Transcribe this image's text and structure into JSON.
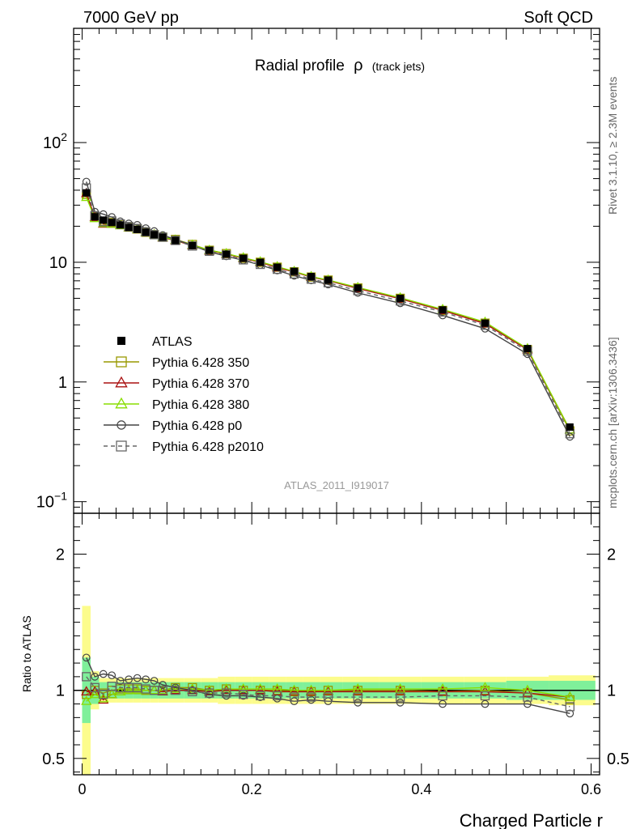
{
  "header": {
    "left": "7000 GeV pp",
    "right": "Soft QCD"
  },
  "side_labels": {
    "top": "Rivet 3.1.10, ≥ 2.3M events",
    "bottom": "mcplots.cern.ch [arXiv:1306.3436]"
  },
  "chart_data": {
    "type": "line",
    "title": "Radial profile",
    "title_symbol": "ρ",
    "title_suffix": "(track jets)",
    "watermark": "ATLAS_2011_I919017",
    "xlabel": "Charged Particle r",
    "ylabel_ratio": "Ratio to ATLAS",
    "xlim": [
      -0.01,
      0.61
    ],
    "ylim": [
      0.08,
      900
    ],
    "yscale": "log",
    "ratio_ylim": [
      0.38,
      2.3
    ],
    "x_ticks": [
      {
        "v": 0,
        "label": "0"
      },
      {
        "v": 0.2,
        "label": "0.2"
      },
      {
        "v": 0.4,
        "label": "0.4"
      },
      {
        "v": 0.6,
        "label": "0.6"
      }
    ],
    "y_ticks": [
      {
        "v": 100,
        "label": "10",
        "exp": "2"
      },
      {
        "v": 10,
        "label": "10",
        "exp": ""
      },
      {
        "v": 1,
        "label": "1",
        "exp": ""
      },
      {
        "v": 0.1,
        "label": "10",
        "exp": "−1"
      }
    ],
    "ratio_ticks": [
      {
        "v": 2,
        "label": "2"
      },
      {
        "v": 1,
        "label": "1"
      },
      {
        "v": 0.5,
        "label": "0.5"
      }
    ],
    "legend_position": "middle-left",
    "x": [
      0.005,
      0.015,
      0.025,
      0.035,
      0.045,
      0.055,
      0.065,
      0.075,
      0.085,
      0.095,
      0.11,
      0.13,
      0.15,
      0.17,
      0.19,
      0.21,
      0.23,
      0.25,
      0.27,
      0.29,
      0.325,
      0.375,
      0.425,
      0.475,
      0.525,
      0.575
    ],
    "data": {
      "name": "ATLAS",
      "values": [
        38,
        24,
        22.5,
        21.5,
        20.5,
        19.5,
        18.8,
        17.8,
        17,
        16.2,
        15.2,
        13.8,
        12.6,
        11.7,
        10.8,
        10,
        9.1,
        8.4,
        7.6,
        7.1,
        6.1,
        5,
        4,
        3.1,
        1.9,
        0.42
      ]
    },
    "band_inner": [
      0.24,
      0.1,
      0.06,
      0.06,
      0.06,
      0.06,
      0.06,
      0.06,
      0.06,
      0.06,
      0.06,
      0.06,
      0.06,
      0.06,
      0.06,
      0.06,
      0.06,
      0.06,
      0.06,
      0.06,
      0.06,
      0.06,
      0.06,
      0.06,
      0.07,
      0.07
    ],
    "band_outer": [
      0.62,
      0.14,
      0.09,
      0.09,
      0.09,
      0.09,
      0.09,
      0.09,
      0.09,
      0.09,
      0.09,
      0.09,
      0.09,
      0.1,
      0.1,
      0.1,
      0.1,
      0.1,
      0.1,
      0.1,
      0.1,
      0.1,
      0.1,
      0.1,
      0.1,
      0.11
    ],
    "series": [
      {
        "name": "Pythia 6.428 350",
        "color": "#999900",
        "marker": "square-open",
        "dash": "",
        "ratio": [
          0.97,
          1.0,
          0.98,
          1.0,
          1.01,
          1.01,
          1.01,
          1.0,
          1.0,
          1.0,
          1.02,
          1.02,
          1.0,
          1.01,
          1.0,
          1.0,
          1.0,
          0.99,
          0.99,
          1.0,
          1.0,
          1.0,
          0.99,
          1.0,
          0.98,
          0.93
        ]
      },
      {
        "name": "Pythia 6.428 370",
        "color": "#aa1111",
        "marker": "triangle-open",
        "dash": "",
        "ratio": [
          0.99,
          0.99,
          0.93,
          0.97,
          0.99,
          1.0,
          1.0,
          1.0,
          1.0,
          0.99,
          1.0,
          1.0,
          0.99,
          1.0,
          1.0,
          1.0,
          0.99,
          0.99,
          0.99,
          0.99,
          0.99,
          0.99,
          0.99,
          0.99,
          0.98,
          0.95
        ]
      },
      {
        "name": "Pythia 6.428 380",
        "color": "#88dd00",
        "marker": "triangle-open",
        "dash": "",
        "ratio": [
          0.92,
          0.97,
          0.94,
          0.97,
          0.99,
          1.0,
          1.0,
          1.0,
          1.0,
          1.0,
          1.01,
          1.01,
          1.0,
          1.01,
          1.01,
          1.01,
          1.01,
          1.0,
          1.0,
          1.0,
          1.01,
          1.01,
          1.01,
          1.02,
          1.0,
          0.95
        ]
      },
      {
        "name": "Pythia 6.428 p0",
        "color": "#444444",
        "marker": "circle-open",
        "dash": "",
        "ratio": [
          1.24,
          1.1,
          1.12,
          1.11,
          1.07,
          1.08,
          1.09,
          1.08,
          1.07,
          1.04,
          1.02,
          1.0,
          0.97,
          0.96,
          0.96,
          0.95,
          0.94,
          0.92,
          0.93,
          0.92,
          0.91,
          0.91,
          0.9,
          0.9,
          0.9,
          0.83
        ]
      },
      {
        "name": "Pythia 6.428 p2010",
        "color": "#666666",
        "marker": "square-open",
        "dash": "5,4",
        "ratio": [
          1.1,
          1.02,
          0.97,
          1.03,
          1.02,
          1.02,
          1.02,
          1.01,
          1.0,
          1.0,
          1.0,
          0.99,
          0.98,
          0.98,
          0.97,
          0.96,
          0.96,
          0.95,
          0.95,
          0.95,
          0.95,
          0.95,
          0.96,
          0.96,
          0.95,
          0.88
        ]
      }
    ]
  },
  "colors": {
    "band_inner": "#7ff09a",
    "band_outer": "#fcfc8c",
    "frame": "#000000"
  }
}
